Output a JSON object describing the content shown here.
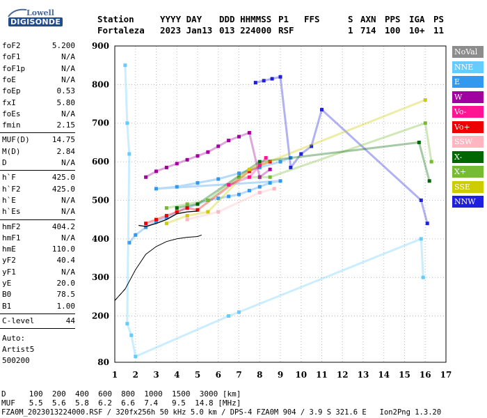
{
  "logo": {
    "line1": "Lowell",
    "line2": "DIGISONDE"
  },
  "header": {
    "cols": [
      {
        "label": "Station",
        "value": "Fortaleza"
      },
      {
        "label": "YYYY DAY",
        "value": "2023 Jan13"
      },
      {
        "label": "DDD HHMMSS",
        "value": "013 224000"
      },
      {
        "label": "P1",
        "value": "RSF"
      },
      {
        "label": "FFS",
        "value": ""
      },
      {
        "label": "S",
        "value": "1"
      },
      {
        "label": "AXN",
        "value": "714"
      },
      {
        "label": "PPS",
        "value": "100"
      },
      {
        "label": "IGA",
        "value": "10+"
      },
      {
        "label": "PS",
        "value": "11"
      }
    ]
  },
  "params": {
    "group1": [
      {
        "name": "foF2",
        "value": "5.200"
      },
      {
        "name": "foF1",
        "value": "N/A"
      },
      {
        "name": "foF1p",
        "value": "N/A"
      },
      {
        "name": "foE",
        "value": "N/A"
      },
      {
        "name": "foEp",
        "value": "0.53"
      },
      {
        "name": "fxI",
        "value": "5.80"
      },
      {
        "name": "foEs",
        "value": "N/A"
      },
      {
        "name": "fmin",
        "value": "2.15"
      }
    ],
    "group2": [
      {
        "name": "MUF(D)",
        "value": "14.75"
      },
      {
        "name": "M(D)",
        "value": "2.84"
      },
      {
        "name": "D",
        "value": "N/A"
      }
    ],
    "group3": [
      {
        "name": "h`F",
        "value": "425.0"
      },
      {
        "name": "h`F2",
        "value": "425.0"
      },
      {
        "name": "h`E",
        "value": "N/A"
      },
      {
        "name": "h`Es",
        "value": "N/A"
      }
    ],
    "group4": [
      {
        "name": "hmF2",
        "value": "404.2"
      },
      {
        "name": "hmF1",
        "value": "N/A"
      },
      {
        "name": "hmE",
        "value": "110.0"
      },
      {
        "name": "yF2",
        "value": "40.4"
      },
      {
        "name": "yF1",
        "value": "N/A"
      },
      {
        "name": "yE",
        "value": "20.0"
      },
      {
        "name": "B0",
        "value": "78.5"
      },
      {
        "name": "B1",
        "value": "1.00"
      }
    ],
    "group5": [
      {
        "name": "C-level",
        "value": "44"
      }
    ],
    "scaler": {
      "label": "Auto:",
      "program": "Artist5",
      "version": "500200"
    }
  },
  "legend": [
    {
      "label": "NoVal",
      "color": "#8c8c8c"
    },
    {
      "label": "NNE",
      "color": "#66ccff"
    },
    {
      "label": "E",
      "color": "#3399ee"
    },
    {
      "label": "W",
      "color": "#a0009f"
    },
    {
      "label": "Vo-",
      "color": "#ff1493"
    },
    {
      "label": "Vo+",
      "color": "#ee0000"
    },
    {
      "label": "SSW",
      "color": "#ffb6c1"
    },
    {
      "label": "X-",
      "color": "#006600"
    },
    {
      "label": "X+",
      "color": "#77bb33"
    },
    {
      "label": "SSE",
      "color": "#cccc00"
    },
    {
      "label": "NNW",
      "color": "#1f1fe0"
    }
  ],
  "chart_data": {
    "type": "scatter",
    "title": "",
    "xlabel": "",
    "ylabel": "",
    "xlim": [
      1,
      17
    ],
    "ylim": [
      80,
      900
    ],
    "x_ticks": [
      "1",
      "2",
      "3",
      "4",
      "5",
      "6",
      "7",
      "8",
      "9",
      "10",
      "11",
      "12",
      "13",
      "14",
      "15",
      "16",
      "17"
    ],
    "y_ticks": [
      "80",
      "200",
      "300",
      "400",
      "500",
      "600",
      "700",
      "800",
      "900"
    ],
    "grid": true,
    "series": [
      {
        "name": "E",
        "color": "#3399ee",
        "points": [
          [
            1.7,
            390
          ],
          [
            2.0,
            410
          ],
          [
            2.5,
            430
          ],
          [
            3.0,
            445
          ],
          [
            3.5,
            455
          ],
          [
            4.0,
            470
          ],
          [
            4.5,
            480
          ],
          [
            5.0,
            490
          ],
          [
            5.5,
            500
          ],
          [
            6.0,
            505
          ],
          [
            6.5,
            510
          ],
          [
            7.0,
            515
          ],
          [
            7.5,
            525
          ],
          [
            8.0,
            535
          ],
          [
            8.5,
            545
          ],
          [
            9.0,
            550
          ],
          [
            3.0,
            530
          ],
          [
            4.0,
            535
          ],
          [
            5.0,
            545
          ],
          [
            6.0,
            555
          ],
          [
            7.0,
            570
          ],
          [
            8.0,
            585
          ],
          [
            9.0,
            600
          ],
          [
            9.5,
            610
          ]
        ]
      },
      {
        "name": "W",
        "color": "#a0009f",
        "points": [
          [
            2.5,
            560
          ],
          [
            3.0,
            575
          ],
          [
            3.5,
            585
          ],
          [
            4.0,
            595
          ],
          [
            4.5,
            605
          ],
          [
            5.0,
            615
          ],
          [
            5.5,
            625
          ],
          [
            6.0,
            640
          ],
          [
            6.5,
            655
          ],
          [
            7.0,
            665
          ],
          [
            7.5,
            675
          ],
          [
            8.0,
            560
          ],
          [
            8.5,
            580
          ]
        ]
      },
      {
        "name": "Vo+",
        "color": "#ee0000",
        "points": [
          [
            2.5,
            440
          ],
          [
            3.0,
            450
          ],
          [
            3.5,
            460
          ],
          [
            4.0,
            470
          ],
          [
            4.5,
            480
          ],
          [
            5.0,
            475
          ],
          [
            7.5,
            575
          ],
          [
            8.0,
            590
          ],
          [
            8.5,
            600
          ]
        ]
      },
      {
        "name": "NNW",
        "color": "#1f1fe0",
        "points": [
          [
            7.8,
            805
          ],
          [
            8.2,
            810
          ],
          [
            8.6,
            815
          ],
          [
            9.0,
            820
          ],
          [
            9.5,
            585
          ],
          [
            10.0,
            620
          ],
          [
            10.5,
            640
          ],
          [
            11.0,
            735
          ],
          [
            15.8,
            500
          ],
          [
            16.1,
            440
          ]
        ]
      },
      {
        "name": "X+",
        "color": "#77bb33",
        "points": [
          [
            3.5,
            480
          ],
          [
            4.5,
            490
          ],
          [
            5.5,
            500
          ],
          [
            7.0,
            560
          ],
          [
            8.5,
            560
          ],
          [
            16.0,
            700
          ],
          [
            16.3,
            600
          ]
        ]
      },
      {
        "name": "X-",
        "color": "#006600",
        "points": [
          [
            4.0,
            480
          ],
          [
            5.0,
            490
          ],
          [
            8.0,
            600
          ],
          [
            15.7,
            650
          ],
          [
            16.2,
            550
          ]
        ]
      },
      {
        "name": "NNE",
        "color": "#66ccff",
        "points": [
          [
            1.5,
            850
          ],
          [
            1.6,
            700
          ],
          [
            1.7,
            620
          ],
          [
            1.6,
            180
          ],
          [
            1.8,
            150
          ],
          [
            2.0,
            95
          ],
          [
            6.5,
            200
          ],
          [
            7.0,
            210
          ],
          [
            15.8,
            400
          ],
          [
            15.9,
            300
          ]
        ]
      },
      {
        "name": "SSE",
        "color": "#cccc00",
        "points": [
          [
            3.5,
            440
          ],
          [
            4.5,
            460
          ],
          [
            5.5,
            470
          ],
          [
            7.5,
            580
          ],
          [
            16.0,
            760
          ]
        ]
      },
      {
        "name": "SSW",
        "color": "#ffb6c1",
        "points": [
          [
            4.5,
            450
          ],
          [
            6.0,
            470
          ],
          [
            8.0,
            520
          ],
          [
            8.7,
            530
          ]
        ]
      },
      {
        "name": "Vo-",
        "color": "#ff1493",
        "points": [
          [
            6.5,
            540
          ],
          [
            7.5,
            560
          ],
          [
            8.0,
            590
          ],
          [
            8.3,
            610
          ]
        ]
      }
    ],
    "profile": [
      [
        1.0,
        240
      ],
      [
        1.5,
        270
      ],
      [
        2.0,
        320
      ],
      [
        2.5,
        360
      ],
      [
        3.0,
        380
      ],
      [
        3.5,
        393
      ],
      [
        4.0,
        400
      ],
      [
        4.5,
        404
      ],
      [
        5.0,
        406
      ],
      [
        5.2,
        410
      ]
    ],
    "profile_dashed": [
      [
        1.0,
        240
      ],
      [
        1.5,
        270
      ]
    ],
    "trace": [
      [
        2.15,
        435
      ],
      [
        2.5,
        432
      ],
      [
        3.0,
        440
      ],
      [
        3.5,
        450
      ],
      [
        4.0,
        465
      ],
      [
        4.5,
        470
      ],
      [
        5.0,
        472
      ]
    ]
  },
  "footer": {
    "d_row": "D     100  200  400  600  800  1000  1500  3000 [km]",
    "muf_row": "MUF   5.5  5.6  5.8  6.2  6.6  7.4   9.5  14.8 [MHz]",
    "file_row": "FZA0M_2023013224000.RSF / 320fx256h 50 kHz 5.0 km / DPS-4 FZA0M 904 / 3.9 S 321.6 E   Ion2Png 1.3.20"
  }
}
